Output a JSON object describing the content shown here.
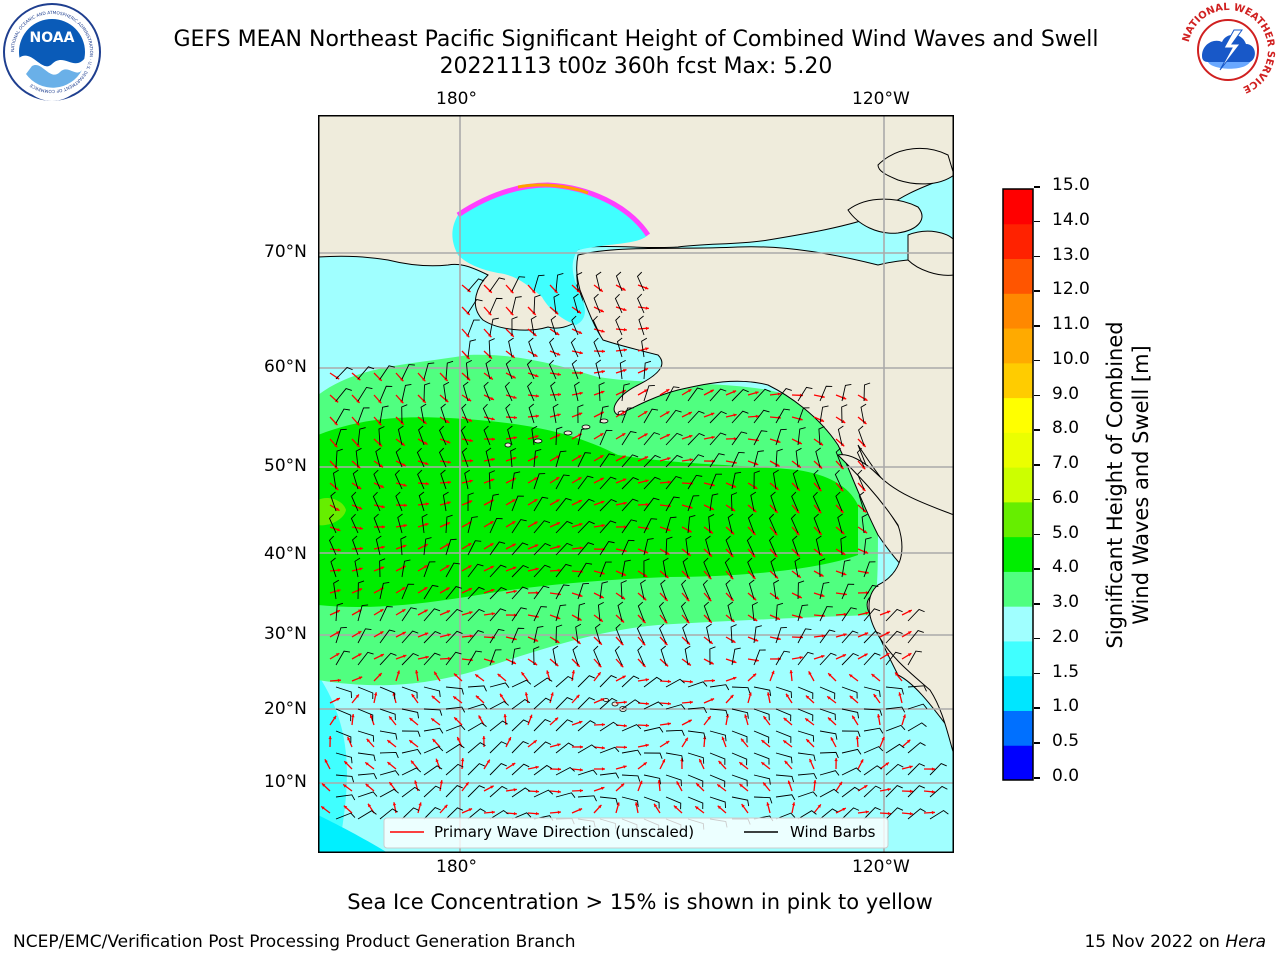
{
  "header": {
    "title_line1": "GEFS MEAN Northeast Pacific Significant Height of Combined Wind Waves and Swell",
    "title_line2": "20221113 t00z 360h fcst   Max: 5.20"
  },
  "logos": {
    "noaa_text": "NOAA",
    "noaa_ring_text": "NATIONAL OCEANIC AND ATMOSPHERIC ADMINISTRATION · U.S. DEPARTMENT OF COMMERCE",
    "nws_ring_text": "NATIONAL WEATHER SERVICE"
  },
  "map": {
    "lon_labels_top": [
      "180°",
      "120°W"
    ],
    "lon_labels_bottom": [
      "180°",
      "120°W"
    ],
    "lat_labels": [
      "70°N",
      "60°N",
      "50°N",
      "40°N",
      "30°N",
      "20°N",
      "10°N"
    ],
    "legend": {
      "wave_direction": "Primary Wave Direction (unscaled)",
      "wind_barbs": "Wind Barbs"
    },
    "ice_note": "Sea Ice Concentration > 15% is shown in pink to yellow"
  },
  "colorbar": {
    "title_line1": "Significant Height of Combined",
    "title_line2": "Wind Waves and Swell [m]",
    "ticks": [
      "0.0",
      "0.5",
      "1.0",
      "1.5",
      "2.0",
      "3.0",
      "4.0",
      "5.0",
      "6.0",
      "7.0",
      "8.0",
      "9.0",
      "10.0",
      "11.0",
      "12.0",
      "13.0",
      "14.0",
      "15.0"
    ],
    "colors": [
      "#0000ff",
      "#0070ff",
      "#00e6ff",
      "#40ffff",
      "#a0ffff",
      "#50ff80",
      "#00ee00",
      "#66ee00",
      "#ccff00",
      "#ebff00",
      "#ffff00",
      "#ffcc00",
      "#ffaa00",
      "#ff8800",
      "#ff5500",
      "#ff2200",
      "#ff0000"
    ]
  },
  "colors": {
    "land": "#efecdc",
    "ocean_low": "#a0ffff",
    "ocean_mid": "#50ff80",
    "ocean_high": "#00ee00",
    "wave_arrow": "#ff0000",
    "barb": "#000000"
  },
  "footer": {
    "left": "NCEP/EMC/Verification Post Processing Product Generation Branch",
    "right_date": "15 Nov 2022 on ",
    "right_host": "Hera"
  }
}
